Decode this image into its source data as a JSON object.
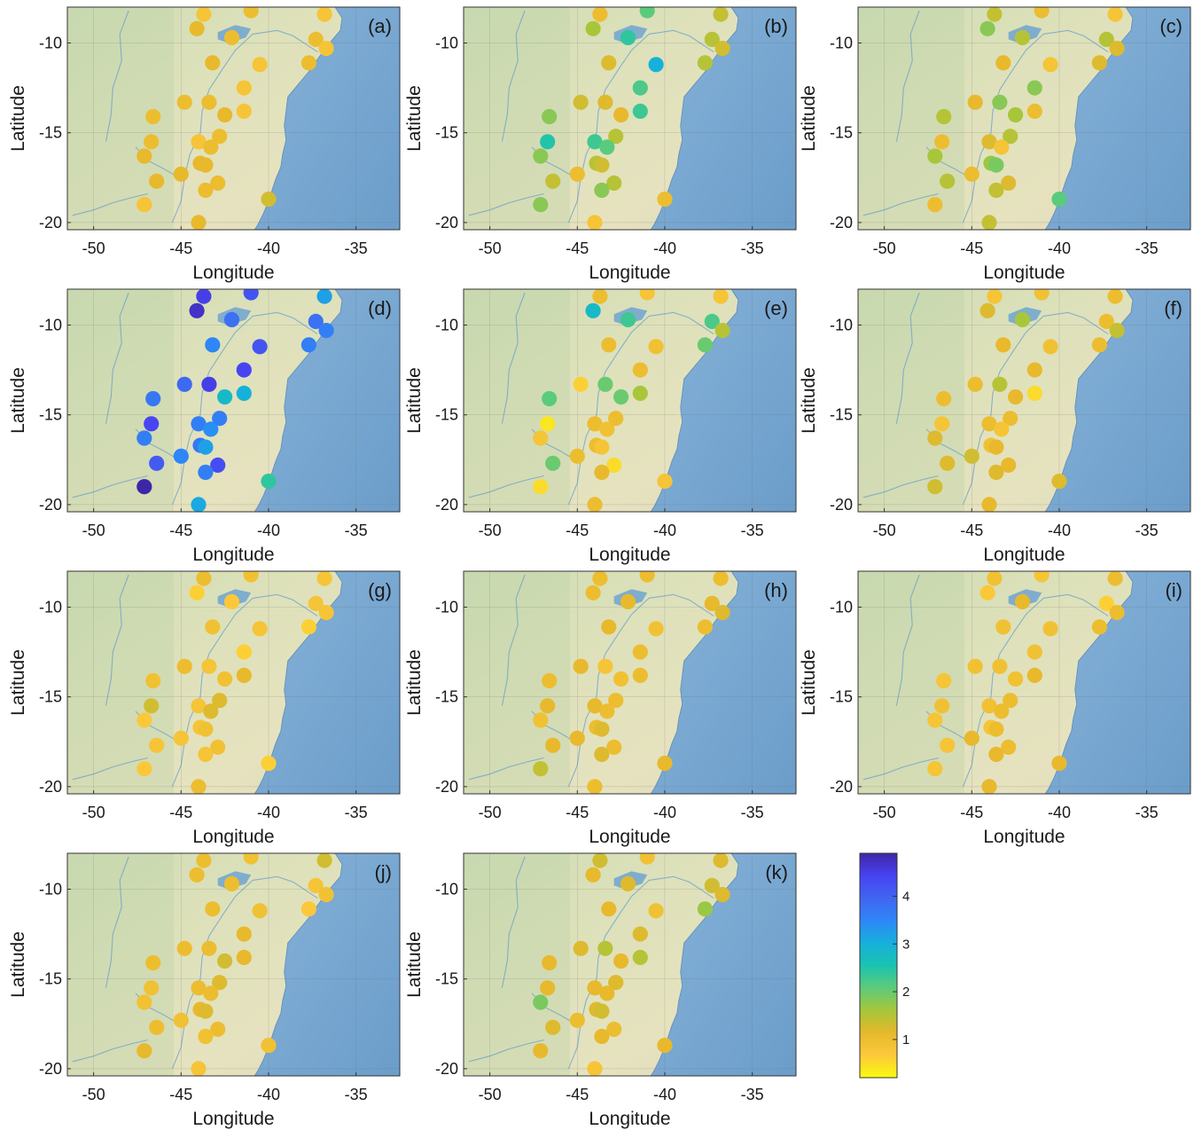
{
  "chart_data": {
    "type": "map-scatter",
    "xlabel": "Longitude",
    "ylabel": "Latitude",
    "xlim": [
      -51.5,
      -32.5
    ],
    "ylim": [
      -20.4,
      -8.0
    ],
    "xticks": [
      -50,
      -45,
      -40,
      -35
    ],
    "yticks": [
      -10,
      -15,
      -20
    ],
    "colorbar": {
      "ticks": [
        1,
        2,
        3,
        4
      ],
      "range": [
        0.2,
        4.9
      ],
      "colormap": "parula",
      "colors": [
        "#3e26a8",
        "#4743f2",
        "#2e87f7",
        "#16b0dc",
        "#1ac3b0",
        "#5dcb7a",
        "#a7c63a",
        "#e6b82c",
        "#fcc93b",
        "#f9fb0e"
      ]
    },
    "stations": [
      {
        "lon": -43.7,
        "lat": -8.4
      },
      {
        "lon": -41.0,
        "lat": -8.2
      },
      {
        "lon": -36.8,
        "lat": -8.4
      },
      {
        "lon": -44.1,
        "lat": -9.2
      },
      {
        "lon": -42.1,
        "lat": -9.7
      },
      {
        "lon": -37.3,
        "lat": -9.8
      },
      {
        "lon": -36.7,
        "lat": -10.3
      },
      {
        "lon": -43.2,
        "lat": -11.1
      },
      {
        "lon": -40.5,
        "lat": -11.2
      },
      {
        "lon": -37.7,
        "lat": -11.1
      },
      {
        "lon": -41.4,
        "lat": -12.5
      },
      {
        "lon": -44.8,
        "lat": -13.3
      },
      {
        "lon": -43.4,
        "lat": -13.3
      },
      {
        "lon": -41.4,
        "lat": -13.8
      },
      {
        "lon": -42.5,
        "lat": -14.0
      },
      {
        "lon": -46.6,
        "lat": -14.1
      },
      {
        "lon": -42.8,
        "lat": -15.2
      },
      {
        "lon": -46.7,
        "lat": -15.5
      },
      {
        "lon": -44.0,
        "lat": -15.5
      },
      {
        "lon": -43.3,
        "lat": -15.8
      },
      {
        "lon": -47.1,
        "lat": -16.3
      },
      {
        "lon": -43.9,
        "lat": -16.7
      },
      {
        "lon": -43.6,
        "lat": -16.8
      },
      {
        "lon": -45.0,
        "lat": -17.3
      },
      {
        "lon": -46.4,
        "lat": -17.7
      },
      {
        "lon": -42.9,
        "lat": -17.8
      },
      {
        "lon": -43.6,
        "lat": -18.2
      },
      {
        "lon": -47.1,
        "lat": -19.0
      },
      {
        "lon": -44.0,
        "lat": -20.0
      },
      {
        "lon": -40.0,
        "lat": -18.7
      }
    ],
    "panels": [
      {
        "label": "(a)",
        "values": [
          0.8,
          1.0,
          0.8,
          1.1,
          1.0,
          1.0,
          0.8,
          1.1,
          0.8,
          1.0,
          0.8,
          1.0,
          1.0,
          0.8,
          1.1,
          1.0,
          1.0,
          1.0,
          0.8,
          1.0,
          1.1,
          1.1,
          1.1,
          1.1,
          1.1,
          1.0,
          1.0,
          0.8,
          1.1,
          1.3
        ]
      },
      {
        "label": "(b)",
        "values": [
          1.0,
          2.1,
          1.4,
          1.6,
          2.4,
          1.5,
          1.3,
          1.2,
          3.0,
          1.5,
          2.2,
          1.3,
          1.2,
          2.3,
          1.1,
          1.8,
          1.5,
          2.5,
          2.3,
          2.1,
          1.8,
          1.5,
          1.3,
          1.0,
          1.4,
          1.5,
          1.8,
          1.8,
          0.8,
          1.0
        ]
      },
      {
        "label": "(c)",
        "values": [
          1.4,
          1.0,
          0.8,
          1.8,
          1.5,
          1.5,
          1.2,
          1.1,
          0.8,
          1.2,
          1.8,
          1.1,
          1.8,
          1.0,
          1.6,
          1.5,
          1.5,
          1.0,
          1.2,
          0.8,
          1.6,
          1.7,
          1.9,
          1.0,
          1.5,
          1.2,
          1.4,
          1.0,
          1.4,
          2.1
        ]
      },
      {
        "label": "(d)",
        "values": [
          4.5,
          4.2,
          3.2,
          4.7,
          3.8,
          3.8,
          3.6,
          3.5,
          4.2,
          3.6,
          4.4,
          3.9,
          4.5,
          3.0,
          2.8,
          3.7,
          3.6,
          4.4,
          3.6,
          3.4,
          3.6,
          3.7,
          3.2,
          3.5,
          4.1,
          4.3,
          3.6,
          4.9,
          3.1,
          2.4
        ]
      },
      {
        "label": "(e)",
        "values": [
          1.0,
          0.8,
          0.8,
          2.8,
          2.3,
          2.2,
          1.5,
          1.0,
          0.9,
          2.0,
          1.0,
          0.6,
          2.0,
          1.6,
          2.0,
          2.1,
          1.0,
          0.4,
          1.0,
          0.9,
          0.8,
          1.0,
          0.8,
          1.0,
          2.0,
          0.5,
          1.1,
          0.5,
          1.0,
          0.8
        ]
      },
      {
        "label": "(f)",
        "values": [
          0.8,
          0.9,
          1.0,
          1.2,
          1.6,
          1.0,
          1.4,
          1.1,
          0.9,
          1.0,
          1.1,
          1.0,
          1.5,
          0.5,
          1.1,
          1.0,
          1.0,
          0.8,
          1.0,
          0.8,
          1.2,
          0.9,
          1.1,
          1.3,
          1.2,
          1.1,
          1.2,
          1.3,
          1.1,
          1.2
        ]
      },
      {
        "label": "(g)",
        "values": [
          1.0,
          0.9,
          0.8,
          0.6,
          0.7,
          0.8,
          0.8,
          0.9,
          0.8,
          0.6,
          0.6,
          1.0,
          0.8,
          1.1,
          0.9,
          0.9,
          1.2,
          1.3,
          0.8,
          1.2,
          0.7,
          0.8,
          0.9,
          0.8,
          0.8,
          0.9,
          0.8,
          0.7,
          1.0,
          0.6
        ]
      },
      {
        "label": "(h)",
        "values": [
          1.0,
          1.0,
          1.0,
          1.0,
          1.1,
          1.1,
          1.2,
          1.1,
          0.9,
          1.0,
          1.0,
          1.1,
          0.8,
          1.0,
          0.9,
          1.0,
          1.0,
          1.1,
          1.1,
          1.0,
          0.9,
          1.0,
          1.2,
          1.1,
          1.1,
          1.0,
          1.2,
          1.4,
          1.0,
          1.1
        ]
      },
      {
        "label": "(i)",
        "values": [
          0.9,
          0.8,
          1.0,
          0.7,
          1.1,
          0.6,
          1.0,
          0.9,
          0.9,
          1.0,
          0.9,
          0.9,
          0.9,
          1.1,
          0.9,
          0.8,
          1.0,
          0.9,
          0.9,
          1.0,
          0.8,
          0.8,
          1.0,
          1.1,
          0.8,
          1.0,
          1.1,
          0.8,
          1.1,
          1.1
        ]
      },
      {
        "label": "(j)",
        "values": [
          1.0,
          0.9,
          1.3,
          1.0,
          1.0,
          0.8,
          0.9,
          1.0,
          0.9,
          0.7,
          1.1,
          1.0,
          1.0,
          1.1,
          1.3,
          1.0,
          1.2,
          0.9,
          1.0,
          1.0,
          0.9,
          1.1,
          1.2,
          0.9,
          1.0,
          1.0,
          0.9,
          1.1,
          0.8,
          0.9
        ]
      },
      {
        "label": "(k)",
        "values": [
          1.3,
          0.9,
          1.2,
          1.1,
          1.2,
          1.3,
          1.2,
          1.1,
          0.9,
          1.7,
          1.2,
          1.2,
          1.5,
          1.5,
          1.1,
          1.1,
          1.2,
          1.1,
          1.1,
          1.1,
          1.9,
          1.2,
          1.3,
          1.0,
          1.2,
          1.0,
          1.1,
          1.1,
          0.8,
          1.1
        ]
      }
    ]
  }
}
